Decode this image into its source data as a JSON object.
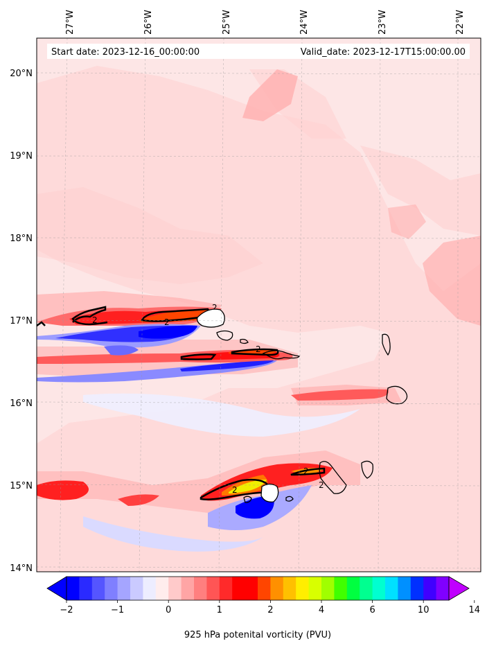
{
  "header": {
    "start_date": "Start date: 2023-12-16_00:00:00",
    "valid_date": "Valid_date: 2023-12-17T15:00:00.00"
  },
  "map": {
    "lon_labels": [
      "27°W",
      "26°W",
      "25°W",
      "24°W",
      "23°W",
      "22°W"
    ],
    "lon_values": [
      -27,
      -26,
      -25,
      -24,
      -23,
      -22
    ],
    "lat_labels": [
      "20°N",
      "19°N",
      "18°N",
      "17°N",
      "16°N",
      "15°N",
      "14°N"
    ],
    "lat_values": [
      20,
      19,
      18,
      17,
      16,
      15,
      14
    ],
    "extent": {
      "lon_min": -27.35,
      "lon_max": -21.7,
      "lat_min": 13.95,
      "lat_max": 20.45
    },
    "contour_label": "2",
    "background_color": "#fde6e6"
  },
  "colorbar": {
    "title": "925 hPa potenital vorticity (PVU)",
    "tick_labels": [
      "−2",
      "−1",
      "0",
      "1",
      "2",
      "4",
      "6",
      "10",
      "14"
    ],
    "colors": [
      "#0000ff",
      "#2a2aff",
      "#5555ff",
      "#7f7fff",
      "#a5a5ff",
      "#cacaff",
      "#ededff",
      "#ffeded",
      "#ffcaca",
      "#ffa5a5",
      "#ff7f7f",
      "#ff5555",
      "#ff2a2a",
      "#ff0000",
      "#ff0000",
      "#ff4500",
      "#ff9000",
      "#ffc000",
      "#ffee00",
      "#d8ff00",
      "#a0ff00",
      "#40ff00",
      "#00ff40",
      "#00ff90",
      "#00ffd0",
      "#00e0ff",
      "#0090ff",
      "#0030ff",
      "#4000ff",
      "#8000ff"
    ],
    "under_color": "#0000ff",
    "over_color": "#c000ff"
  }
}
